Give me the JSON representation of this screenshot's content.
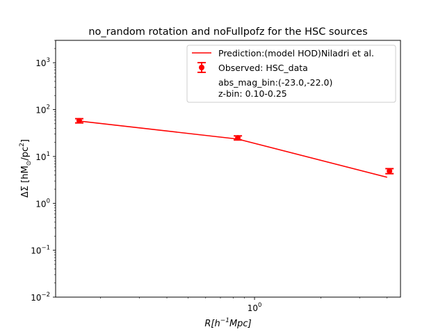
{
  "chart_data": {
    "type": "line",
    "title": "no_random rotation and noFullpofz for the HSC sources",
    "xlabel": "R[h",
    "xlabel_sup": "−1",
    "xlabel_tail": "Mpc]",
    "ylabel_prefix": "ΔΣ [hM",
    "ylabel_sub": "⊙",
    "ylabel_mid": "/pc",
    "ylabel_sup": "2",
    "ylabel_suffix": "]",
    "x_scale": "log",
    "y_scale": "log",
    "xlim": [
      0.125,
      4.6
    ],
    "ylim": [
      0.01,
      3000
    ],
    "x_major_ticks": [
      {
        "value": 1,
        "base": "10",
        "exp": "0"
      }
    ],
    "y_major_ticks": [
      {
        "value": 0.01,
        "base": "10",
        "exp": "−2"
      },
      {
        "value": 0.1,
        "base": "10",
        "exp": "−1"
      },
      {
        "value": 1,
        "base": "10",
        "exp": "0"
      },
      {
        "value": 10,
        "base": "10",
        "exp": "1"
      },
      {
        "value": 100,
        "base": "10",
        "exp": "2"
      },
      {
        "value": 1000,
        "base": "10",
        "exp": "3"
      }
    ],
    "grid": false,
    "legend_position": "top-right",
    "color": "#ff0000",
    "series": [
      {
        "name": "Prediction:(model HOD)Niladri et al.",
        "kind": "line",
        "x": [
          0.16,
          0.84,
          4.0
        ],
        "y": [
          57,
          23.5,
          3.6
        ]
      },
      {
        "name": "Observed: HSC_data",
        "kind": "errorbar",
        "x": [
          0.16,
          0.84,
          4.1
        ],
        "y": [
          58,
          25,
          4.9
        ],
        "yerr_low": [
          6,
          2.5,
          0.6
        ],
        "yerr_high": [
          6,
          2.5,
          0.6
        ]
      }
    ],
    "annotations": [
      "abs_mag_bin:(-23.0,-22.0)",
      "z-bin: 0.10-0.25"
    ]
  }
}
